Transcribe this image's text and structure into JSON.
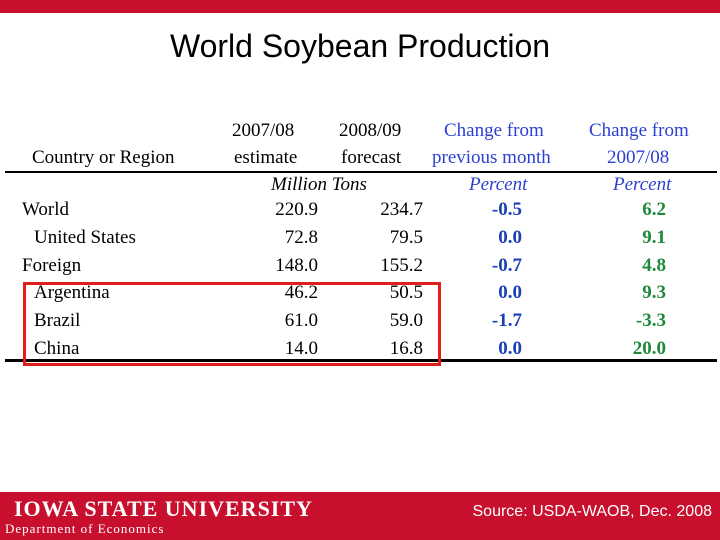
{
  "slide": {
    "title": "World Soybean Production"
  },
  "table": {
    "headers": {
      "country": "Country or Region",
      "y1_line1": "2007/08",
      "y1_line2": "estimate",
      "y2_line1": "2008/09",
      "y2_line2": "forecast",
      "ch1_line1": "Change from",
      "ch1_line2": "previous month",
      "ch2_line1": "Change from",
      "ch2_line2": "2007/08"
    },
    "units": {
      "tons": "Million Tons",
      "pct1": "Percent",
      "pct2": "Percent"
    },
    "rows": [
      {
        "country": "World",
        "y1": "220.9",
        "y2": "234.7",
        "ch1": "-0.5",
        "ch2": "6.2"
      },
      {
        "country": "United States",
        "y1": "72.8",
        "y2": "79.5",
        "ch1": "0.0",
        "ch2": "9.1"
      },
      {
        "country": "Foreign",
        "y1": "148.0",
        "y2": "155.2",
        "ch1": "-0.7",
        "ch2": "4.8"
      },
      {
        "country": "Argentina",
        "y1": "46.2",
        "y2": "50.5",
        "ch1": "0.0",
        "ch2": "9.3"
      },
      {
        "country": "Brazil",
        "y1": "61.0",
        "y2": "59.0",
        "ch1": "-1.7",
        "ch2": "-3.3"
      },
      {
        "country": "China",
        "y1": "14.0",
        "y2": "16.8",
        "ch1": "0.0",
        "ch2": "20.0"
      }
    ]
  },
  "footer": {
    "logo": "IOWA STATE UNIVERSITY",
    "department": "Department of Economics",
    "source": "Source: USDA-WAOB, Dec. 2008"
  },
  "colors": {
    "brand_red": "#c8102e",
    "change_blue": "#1a3fb8",
    "change_green": "#1f8a3b",
    "highlight_box": "#e31c1c"
  }
}
